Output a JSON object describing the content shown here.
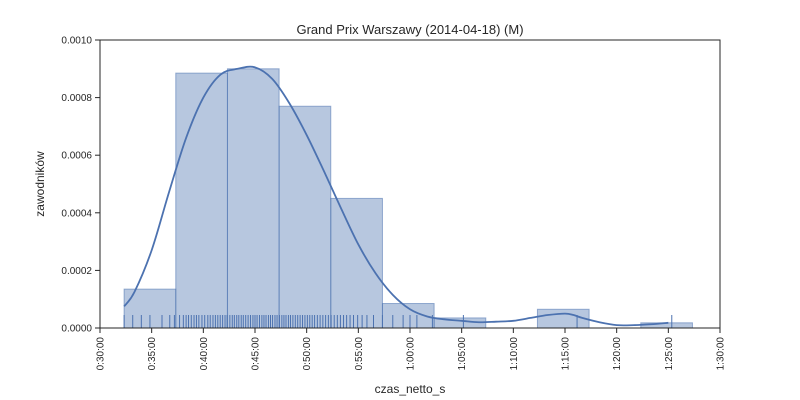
{
  "chart_data": {
    "type": "bar",
    "title": "Grand Prix Warszawy (2014-04-18) (M)",
    "xlabel": "czas_netto_s",
    "ylabel": "zawodników",
    "xlim_s": [
      1800,
      5400
    ],
    "ylim": [
      0,
      0.001
    ],
    "x_ticks": [
      {
        "value": 1800,
        "label": "0:30:00"
      },
      {
        "value": 2100,
        "label": "0:35:00"
      },
      {
        "value": 2400,
        "label": "0:40:00"
      },
      {
        "value": 2700,
        "label": "0:45:00"
      },
      {
        "value": 3000,
        "label": "0:50:00"
      },
      {
        "value": 3300,
        "label": "0:55:00"
      },
      {
        "value": 3600,
        "label": "1:00:00"
      },
      {
        "value": 3900,
        "label": "1:05:00"
      },
      {
        "value": 4200,
        "label": "1:10:00"
      },
      {
        "value": 4500,
        "label": "1:15:00"
      },
      {
        "value": 4800,
        "label": "1:20:00"
      },
      {
        "value": 5100,
        "label": "1:25:00"
      },
      {
        "value": 5400,
        "label": "1:30:00"
      }
    ],
    "y_ticks": [
      {
        "value": 0,
        "label": "0.0000"
      },
      {
        "value": 0.0002,
        "label": "0.0002"
      },
      {
        "value": 0.0004,
        "label": "0.0004"
      },
      {
        "value": 0.0006,
        "label": "0.0006"
      },
      {
        "value": 0.0008,
        "label": "0.0008"
      },
      {
        "value": 0.001,
        "label": "0.0010"
      }
    ],
    "histogram": [
      {
        "x0": 1940,
        "x1": 2240,
        "value": 0.000135
      },
      {
        "x0": 2240,
        "x1": 2540,
        "value": 0.000885
      },
      {
        "x0": 2540,
        "x1": 2840,
        "value": 0.0009
      },
      {
        "x0": 2840,
        "x1": 3140,
        "value": 0.00077
      },
      {
        "x0": 3140,
        "x1": 3440,
        "value": 0.00045
      },
      {
        "x0": 3440,
        "x1": 3740,
        "value": 8.5e-05
      },
      {
        "x0": 3740,
        "x1": 4040,
        "value": 3.5e-05
      },
      {
        "x0": 4040,
        "x1": 4340,
        "value": 0.0
      },
      {
        "x0": 4340,
        "x1": 4640,
        "value": 6.5e-05
      },
      {
        "x0": 4640,
        "x1": 4940,
        "value": 0.0
      },
      {
        "x0": 4940,
        "x1": 5240,
        "value": 1.8e-05
      }
    ],
    "kde": {
      "x": [
        1940,
        2000,
        2100,
        2200,
        2300,
        2400,
        2500,
        2600,
        2700,
        2800,
        2900,
        3000,
        3100,
        3200,
        3300,
        3400,
        3500,
        3600,
        3700,
        3800,
        3900,
        4000,
        4100,
        4200,
        4300,
        4400,
        4500,
        4550,
        4600,
        4700,
        4800,
        4900,
        5000,
        5100
      ],
      "y": [
        7.5e-05,
        0.000125,
        0.00027,
        0.00047,
        0.00066,
        0.0008,
        0.00088,
        0.0009,
        0.000905,
        0.000865,
        0.00078,
        0.00067,
        0.000545,
        0.000415,
        0.00029,
        0.00019,
        0.000115,
        6.5e-05,
        4e-05,
        3e-05,
        2.5e-05,
        2e-05,
        2.2e-05,
        2.5e-05,
        3.5e-05,
        4.5e-05,
        5e-05,
        4.5e-05,
        3.5e-05,
        2e-05,
        1e-05,
        1e-05,
        1.3e-05,
        1.8e-05
      ]
    },
    "rug_s": [
      1940,
      1990,
      2040,
      2090,
      2160,
      2205,
      2232,
      2262,
      2284,
      2300,
      2314,
      2330,
      2346,
      2360,
      2374,
      2392,
      2408,
      2426,
      2440,
      2456,
      2470,
      2484,
      2498,
      2512,
      2526,
      2538,
      2554,
      2568,
      2580,
      2594,
      2606,
      2620,
      2632,
      2646,
      2660,
      2674,
      2688,
      2700,
      2712,
      2726,
      2740,
      2752,
      2764,
      2778,
      2790,
      2802,
      2816,
      2828,
      2842,
      2856,
      2868,
      2880,
      2894,
      2906,
      2920,
      2934,
      2948,
      2962,
      2976,
      2990,
      3004,
      3018,
      3032,
      3046,
      3062,
      3078,
      3094,
      3110,
      3126,
      3142,
      3160,
      3178,
      3196,
      3214,
      3232,
      3252,
      3272,
      3296,
      3322,
      3350,
      3388,
      3440,
      3500,
      3560,
      3600,
      3640,
      3730,
      3910,
      4570,
      5120
    ],
    "grid": false,
    "legend": "none"
  }
}
